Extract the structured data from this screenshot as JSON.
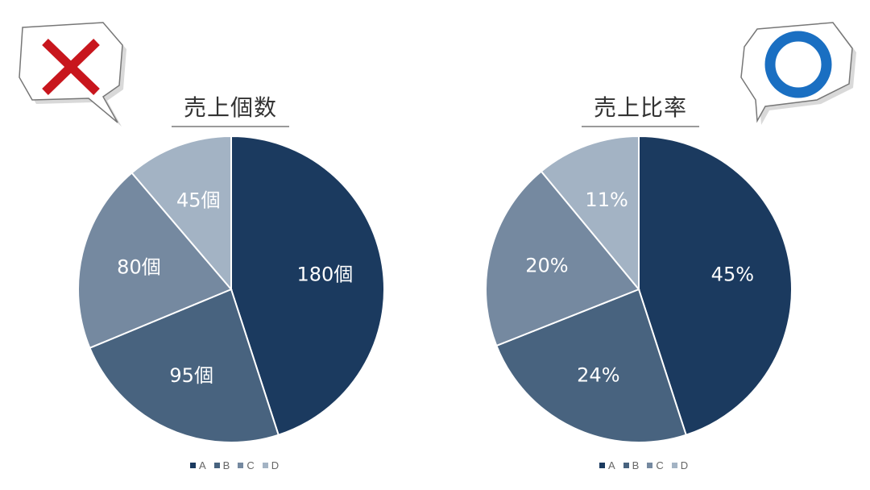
{
  "colors": {
    "A": "#1b3a5f",
    "B": "#48637f",
    "C": "#7589a0",
    "D": "#a3b3c4",
    "bad_mark": "#c8161d",
    "good_mark": "#1a6fc2"
  },
  "badge_left": {
    "icon": "cross-icon"
  },
  "badge_right": {
    "icon": "circle-icon"
  },
  "chart_data": [
    {
      "type": "pie",
      "title": "売上個数",
      "categories": [
        "A",
        "B",
        "C",
        "D"
      ],
      "values": [
        180,
        95,
        80,
        45
      ],
      "labels": [
        "180個",
        "95個",
        "80個",
        "45個"
      ],
      "legend": "bottom"
    },
    {
      "type": "pie",
      "title": "売上比率",
      "categories": [
        "A",
        "B",
        "C",
        "D"
      ],
      "values": [
        45,
        24,
        20,
        11
      ],
      "labels": [
        "45%",
        "24%",
        "20%",
        "11%"
      ],
      "legend": "bottom"
    }
  ]
}
